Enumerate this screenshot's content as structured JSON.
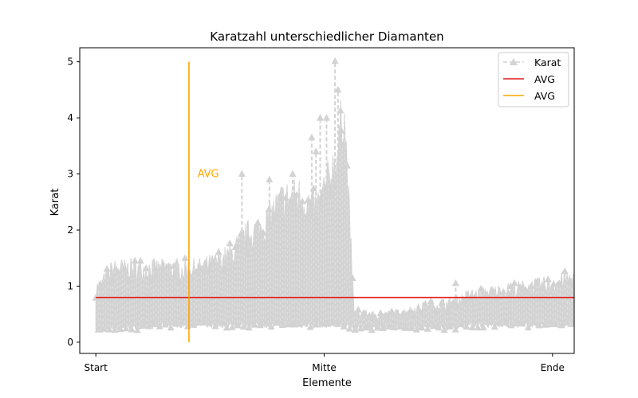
{
  "chart_data": {
    "type": "line",
    "title": "Karatzahl unterschiedlicher Diamanten",
    "xlabel": "Elemente",
    "ylabel": "Karat",
    "ylim": [
      -0.2,
      5.25
    ],
    "xlim": [
      -3800,
      113000
    ],
    "x_ticks": [
      {
        "value": 0,
        "label": "Start"
      },
      {
        "value": 53940,
        "label": "Mitte"
      },
      {
        "value": 107880,
        "label": "Ende"
      }
    ],
    "y_ticks": [
      0,
      1,
      2,
      3,
      4,
      5
    ],
    "x_range_plotted": [
      0,
      116000
    ],
    "series": [
      {
        "name": "Karat",
        "style": "dashed line with triangle markers",
        "color": "#d3d3d3",
        "envelope": {
          "x": [
            0,
            1500,
            4000,
            8000,
            12000,
            16000,
            20000,
            24000,
            28000,
            32000,
            36000,
            40000,
            44000,
            48000,
            52000,
            55000,
            57500,
            58500,
            61000,
            66000,
            72000,
            78000,
            84000,
            88000,
            92000,
            96000,
            100000,
            104000,
            108000,
            112000,
            116000
          ],
          "high": [
            1.1,
            1.2,
            1.5,
            1.5,
            1.5,
            1.5,
            1.5,
            1.5,
            1.6,
            1.8,
            2.2,
            2.4,
            2.9,
            3.0,
            2.7,
            3.3,
            4.0,
            5.0,
            0.6,
            0.55,
            0.6,
            0.75,
            0.8,
            0.95,
            1.0,
            1.05,
            1.1,
            1.15,
            1.2,
            1.3,
            1.3
          ],
          "low": [
            0.2,
            0.2,
            0.25,
            0.25,
            0.25,
            0.3,
            0.3,
            0.3,
            0.3,
            0.3,
            0.3,
            0.3,
            0.3,
            0.3,
            0.3,
            0.3,
            0.3,
            0.3,
            0.25,
            0.25,
            0.25,
            0.25,
            0.25,
            0.3,
            0.3,
            0.3,
            0.3,
            0.3,
            0.3,
            0.3,
            0.3
          ]
        },
        "peaks": [
          {
            "x": 53000,
            "y": 4.0
          },
          {
            "x": 54500,
            "y": 4.0
          },
          {
            "x": 56500,
            "y": 5.01
          },
          {
            "x": 57200,
            "y": 4.5
          },
          {
            "x": 57800,
            "y": 4.13
          },
          {
            "x": 51000,
            "y": 3.65
          },
          {
            "x": 52000,
            "y": 3.4
          },
          {
            "x": 46500,
            "y": 3.0
          },
          {
            "x": 41000,
            "y": 2.9
          },
          {
            "x": 34500,
            "y": 3.0
          },
          {
            "x": 85000,
            "y": 1.05
          },
          {
            "x": 98000,
            "y": 1.0
          }
        ]
      },
      {
        "name": "AVG",
        "type": "hline",
        "y": 0.798,
        "x_range": [
          0,
          116000
        ],
        "color": "#e41a1c"
      },
      {
        "name": "AVG",
        "type": "vline",
        "x": 22000,
        "y_range": [
          0,
          5.0
        ],
        "color": "#ffa500"
      }
    ],
    "annotations": [
      {
        "text": "AVG",
        "x": 24000,
        "y": 3.0,
        "color": "#ffa500"
      }
    ],
    "legend": {
      "placement": "top-right",
      "entries": [
        {
          "label": "Karat",
          "color": "#d3d3d3",
          "style": "dashed-marker"
        },
        {
          "label": "AVG",
          "color": "#e41a1c",
          "style": "solid"
        },
        {
          "label": "AVG",
          "color": "#ffa500",
          "style": "solid"
        }
      ]
    },
    "grid": false
  }
}
